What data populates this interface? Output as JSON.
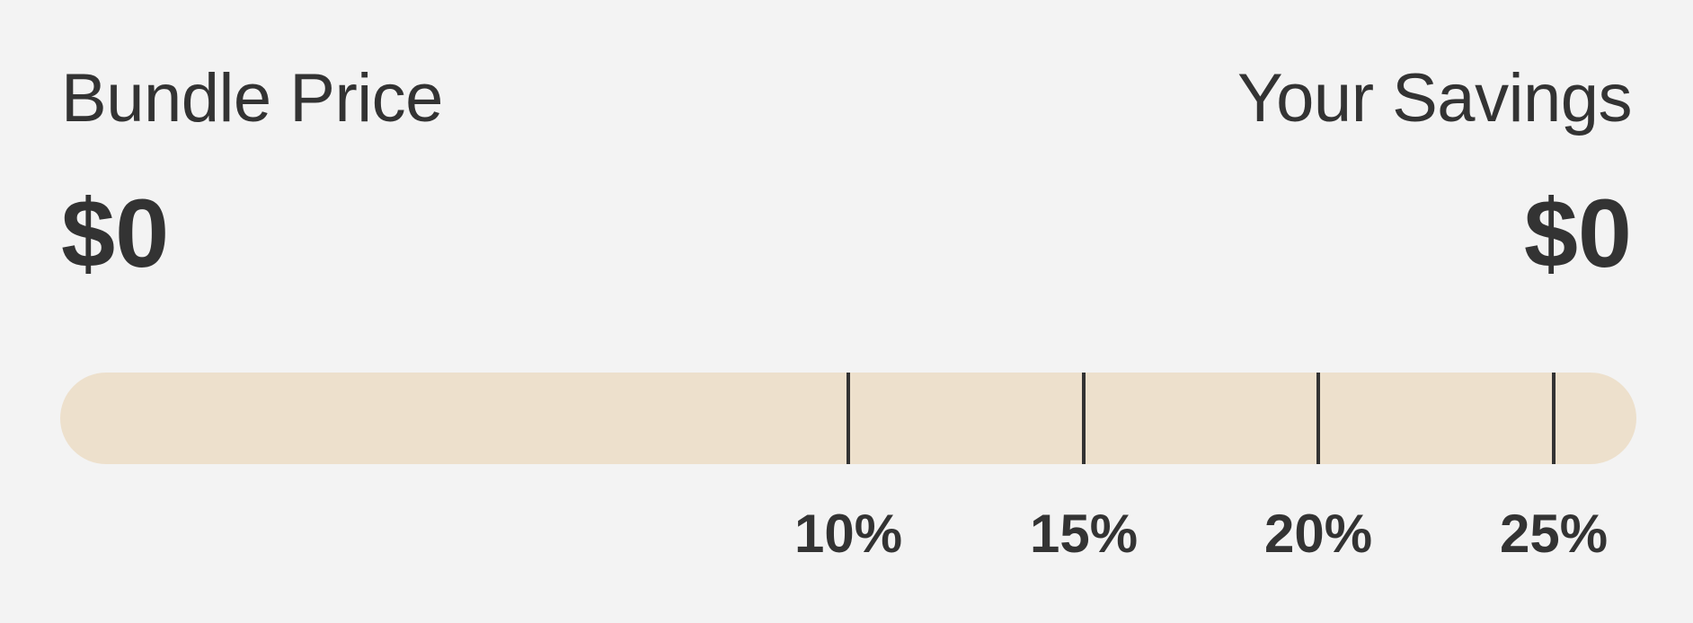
{
  "bundle": {
    "price_label": "Bundle Price",
    "price_value": "$0"
  },
  "savings": {
    "label": "Your Savings",
    "value": "$0"
  },
  "progress": {
    "fraction": 0,
    "fill_color": "#c9a877",
    "track_color": "#ede0cc",
    "milestones": [
      {
        "label": "10%"
      },
      {
        "label": "15%"
      },
      {
        "label": "20%"
      },
      {
        "label": "25%"
      }
    ]
  }
}
